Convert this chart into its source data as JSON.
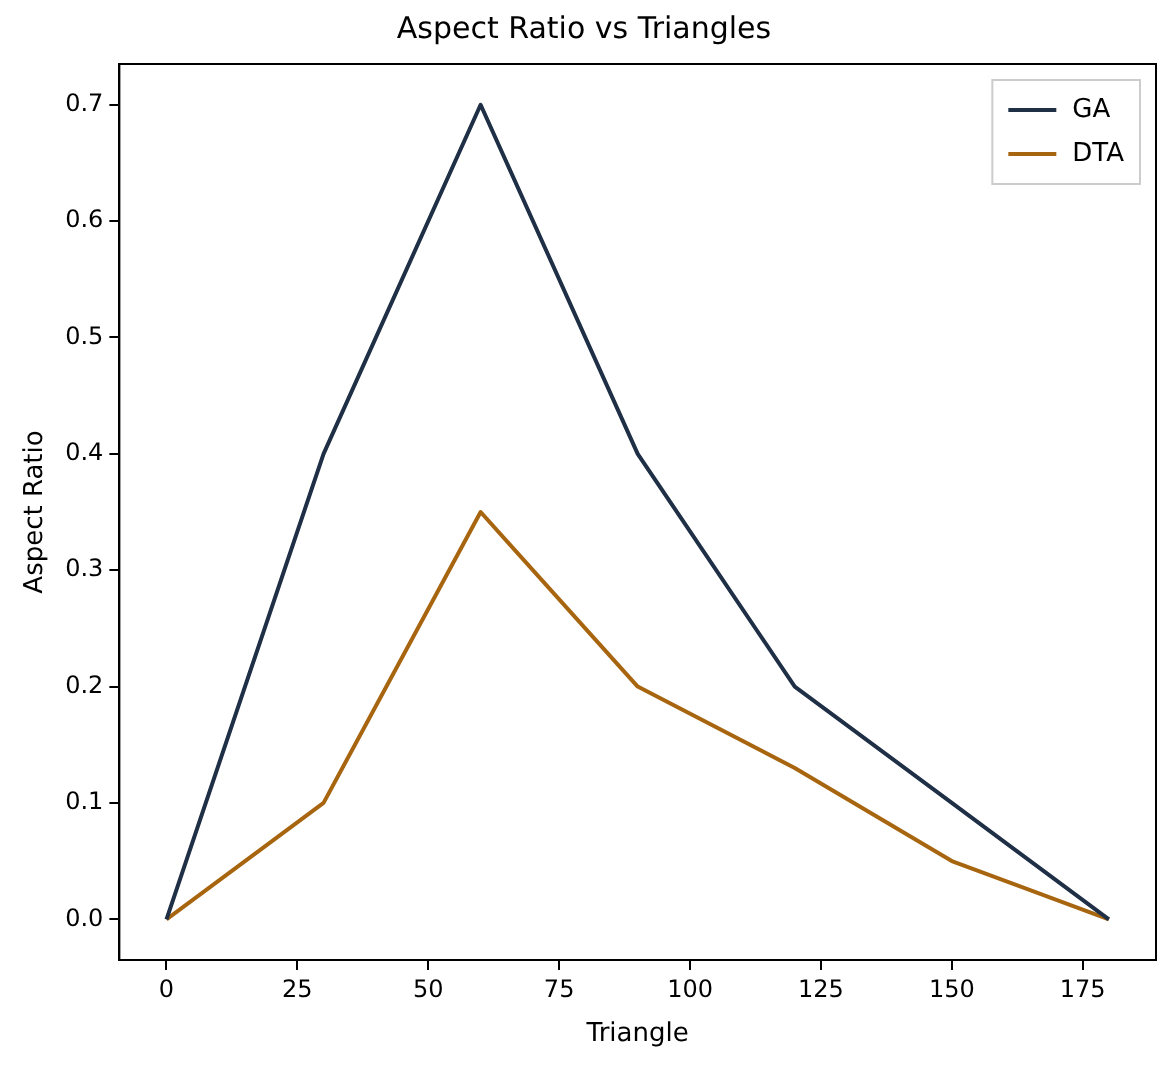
{
  "chart_data": {
    "type": "line",
    "title": "Aspect Ratio vs Triangles",
    "xlabel": "Triangle",
    "ylabel": "Aspect Ratio",
    "x": [
      0,
      30,
      60,
      90,
      120,
      150,
      180
    ],
    "series": [
      {
        "name": "GA",
        "color": "#1f2f45",
        "values": [
          0,
          0.4,
          0.7,
          0.4,
          0.2,
          0.1,
          0
        ]
      },
      {
        "name": "DTA",
        "color": "#a8650f",
        "values": [
          0,
          0.1,
          0.35,
          0.2,
          0.13,
          0.05,
          0
        ]
      }
    ],
    "xlim": [
      -9,
      189
    ],
    "xticks": [
      0,
      25,
      50,
      75,
      100,
      125,
      150,
      175
    ],
    "ylim": [
      -0.035,
      0.735
    ],
    "yticks": [
      {
        "value": 0,
        "label": "0.0"
      },
      {
        "value": 0.1,
        "label": "0.1"
      },
      {
        "value": 0.2,
        "label": "0.2"
      },
      {
        "value": 0.3,
        "label": "0.3"
      },
      {
        "value": 0.4,
        "label": "0.4"
      },
      {
        "value": 0.5,
        "label": "0.5"
      },
      {
        "value": 0.6,
        "label": "0.6"
      },
      {
        "value": 0.7,
        "label": "0.7"
      }
    ],
    "grid": false,
    "legend": "top right",
    "marker": "none",
    "line_style": "solid"
  }
}
